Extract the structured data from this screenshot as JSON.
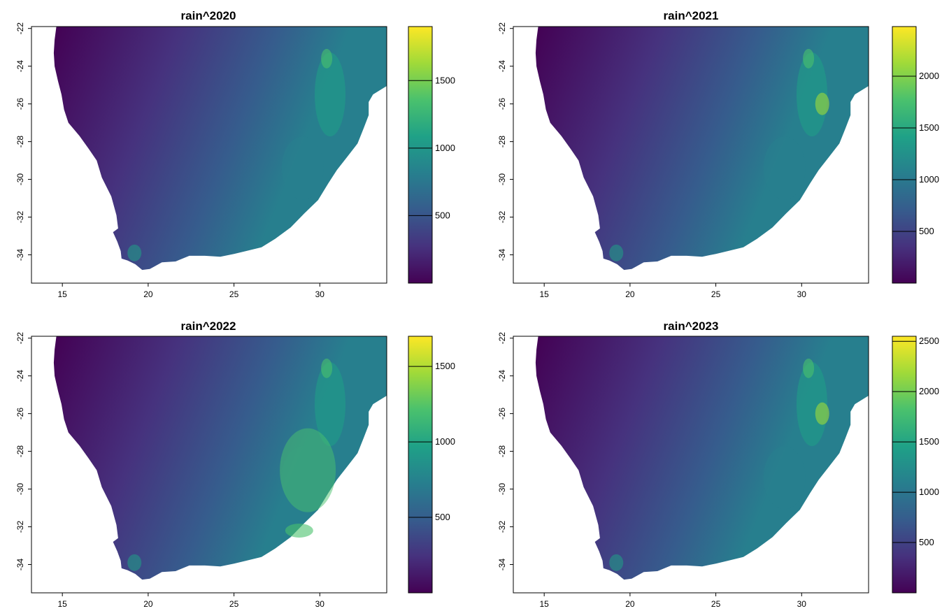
{
  "figure": {
    "colorscale": "viridis",
    "viridis": [
      "#440154",
      "#46327e",
      "#365c8d",
      "#277f8e",
      "#1fa187",
      "#4ac16d",
      "#a0da39",
      "#fde725"
    ],
    "no_data_color": "#ffffff",
    "panels": [
      {
        "title": "rain^2020",
        "xlim": [
          13.2,
          33.9
        ],
        "ylim": [
          -35.5,
          -21.9
        ],
        "x_ticks": [
          15,
          20,
          25,
          30
        ],
        "y_ticks": [
          -22,
          -24,
          -26,
          -28,
          -30,
          -32,
          -34
        ],
        "x_tick_labels": [
          "15",
          "20",
          "25",
          "30"
        ],
        "y_tick_labels": [
          "-22",
          "-24",
          "-26",
          "-28",
          "-30",
          "-32",
          "-34"
        ],
        "legend": {
          "min": 0,
          "max": 1900,
          "ticks": [
            500,
            1000,
            1500
          ],
          "tick_labels": [
            "500",
            "1000",
            "1500"
          ]
        }
      },
      {
        "title": "rain^2021",
        "xlim": [
          13.2,
          33.9
        ],
        "ylim": [
          -35.5,
          -21.9
        ],
        "x_ticks": [
          15,
          20,
          25,
          30
        ],
        "y_ticks": [
          -22,
          -24,
          -26,
          -28,
          -30,
          -32,
          -34
        ],
        "x_tick_labels": [
          "15",
          "20",
          "25",
          "30"
        ],
        "y_tick_labels": [
          "-22",
          "-24",
          "-26",
          "-28",
          "-30",
          "-32",
          "-34"
        ],
        "legend": {
          "min": 0,
          "max": 2480,
          "ticks": [
            500,
            1000,
            1500,
            2000
          ],
          "tick_labels": [
            "500",
            "1000",
            "1500",
            "2000"
          ]
        }
      },
      {
        "title": "rain^2022",
        "xlim": [
          13.2,
          33.9
        ],
        "ylim": [
          -35.5,
          -21.9
        ],
        "x_ticks": [
          15,
          20,
          25,
          30
        ],
        "y_ticks": [
          -22,
          -24,
          -26,
          -28,
          -30,
          -32,
          -34
        ],
        "x_tick_labels": [
          "15",
          "20",
          "25",
          "30"
        ],
        "y_tick_labels": [
          "-22",
          "-24",
          "-26",
          "-28",
          "-30",
          "-32",
          "-34"
        ],
        "legend": {
          "min": 0,
          "max": 1700,
          "ticks": [
            500,
            1000,
            1500
          ],
          "tick_labels": [
            "500",
            "1000",
            "1500"
          ]
        }
      },
      {
        "title": "rain^2023",
        "xlim": [
          13.2,
          33.9
        ],
        "ylim": [
          -35.5,
          -21.9
        ],
        "x_ticks": [
          15,
          20,
          25,
          30
        ],
        "y_ticks": [
          -22,
          -24,
          -26,
          -28,
          -30,
          -32,
          -34
        ],
        "x_tick_labels": [
          "15",
          "20",
          "25",
          "30"
        ],
        "y_tick_labels": [
          "-22",
          "-24",
          "-26",
          "-28",
          "-30",
          "-32",
          "-34"
        ],
        "legend": {
          "min": 0,
          "max": 2550,
          "ticks": [
            500,
            1000,
            1500,
            2000,
            2500
          ],
          "tick_labels": [
            "500",
            "1000",
            "1500",
            "2000",
            "2500"
          ]
        }
      }
    ]
  }
}
